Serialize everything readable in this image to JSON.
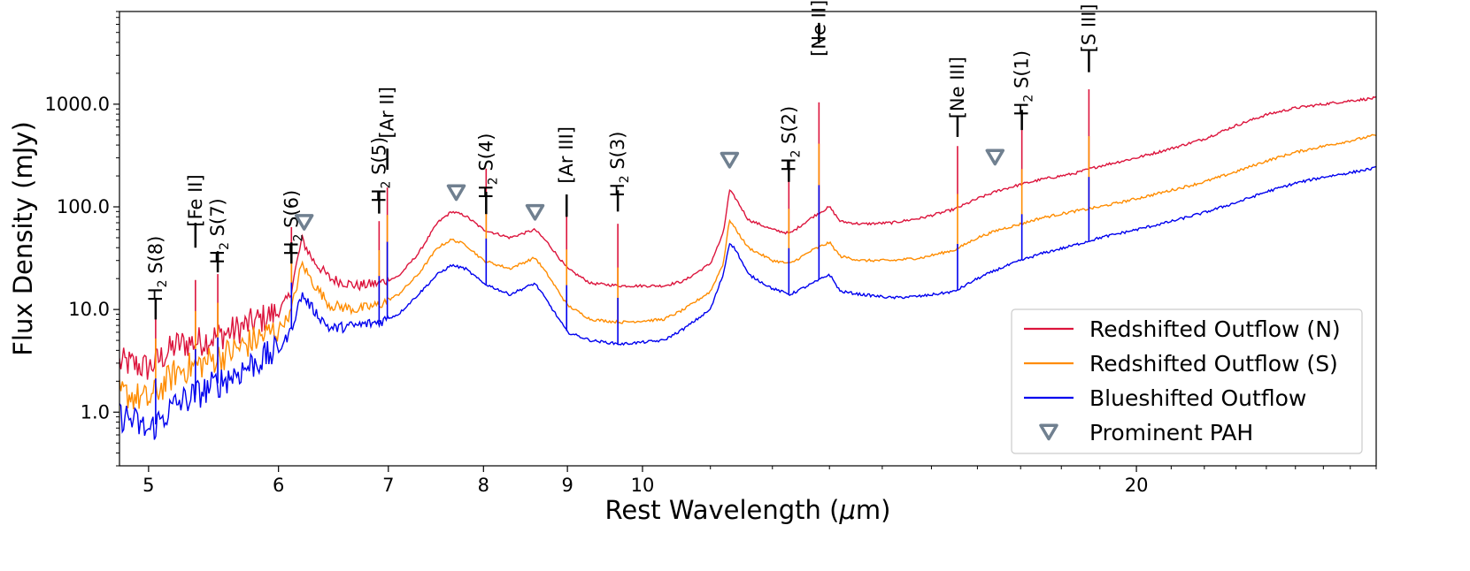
{
  "chart_data": {
    "type": "line",
    "title": "",
    "xlabel": "Rest Wavelength (μm)",
    "xlabel_parts": {
      "text": "Rest Wavelength (",
      "unit": "μ",
      "unit_rest": "m)"
    },
    "ylabel": "Flux Density (mJy)",
    "xscale": "log",
    "yscale": "log",
    "xlim": [
      4.8,
      28.0
    ],
    "ylim": [
      0.3,
      8000
    ],
    "xticks": [
      {
        "value": 5,
        "label": "5"
      },
      {
        "value": 6,
        "label": "6"
      },
      {
        "value": 7,
        "label": "7"
      },
      {
        "value": 8,
        "label": "8"
      },
      {
        "value": 9,
        "label": "9"
      },
      {
        "value": 10,
        "label": "10"
      },
      {
        "value": 20,
        "label": "20"
      }
    ],
    "yticks": [
      {
        "value": 1,
        "label": "1.0"
      },
      {
        "value": 10,
        "label": "10.0"
      },
      {
        "value": 100,
        "label": "100.0"
      },
      {
        "value": 1000,
        "label": "1000.0"
      }
    ],
    "series": [
      {
        "name": "Redshifted Outflow (N)",
        "color": "#dc143c",
        "points": [
          [
            4.85,
            3.0
          ],
          [
            5.0,
            2.7
          ],
          [
            5.2,
            4.5
          ],
          [
            5.4,
            5.0
          ],
          [
            5.6,
            6.0
          ],
          [
            5.8,
            7.5
          ],
          [
            6.0,
            9.5
          ],
          [
            6.1,
            14
          ],
          [
            6.2,
            48
          ],
          [
            6.3,
            30
          ],
          [
            6.45,
            20
          ],
          [
            6.7,
            17
          ],
          [
            6.9,
            18
          ],
          [
            7.1,
            21
          ],
          [
            7.3,
            35
          ],
          [
            7.5,
            70
          ],
          [
            7.65,
            90
          ],
          [
            7.8,
            82
          ],
          [
            8.0,
            60
          ],
          [
            8.3,
            50
          ],
          [
            8.6,
            60
          ],
          [
            8.75,
            45
          ],
          [
            9.0,
            25
          ],
          [
            9.3,
            18
          ],
          [
            9.7,
            17
          ],
          [
            10.3,
            17
          ],
          [
            10.6,
            19
          ],
          [
            11.0,
            28
          ],
          [
            11.2,
            55
          ],
          [
            11.3,
            145
          ],
          [
            11.4,
            120
          ],
          [
            11.6,
            75
          ],
          [
            12.0,
            60
          ],
          [
            12.3,
            55
          ],
          [
            12.7,
            80
          ],
          [
            13.0,
            100
          ],
          [
            13.2,
            72
          ],
          [
            13.6,
            68
          ],
          [
            14.2,
            70
          ],
          [
            14.8,
            78
          ],
          [
            15.5,
            95
          ],
          [
            16.0,
            120
          ],
          [
            16.5,
            145
          ],
          [
            17.0,
            165
          ],
          [
            17.5,
            185
          ],
          [
            18.3,
            210
          ],
          [
            19.0,
            250
          ],
          [
            20.0,
            300
          ],
          [
            21.0,
            370
          ],
          [
            22.0,
            460
          ],
          [
            23.0,
            620
          ],
          [
            24.0,
            790
          ],
          [
            25.0,
            920
          ],
          [
            26.0,
            1000
          ],
          [
            27.0,
            1080
          ],
          [
            28.0,
            1150
          ]
        ]
      },
      {
        "name": "Redshifted Outflow (S)",
        "color": "#ff8c00",
        "points": [
          [
            4.85,
            1.5
          ],
          [
            5.0,
            1.3
          ],
          [
            5.2,
            2.5
          ],
          [
            5.4,
            3.0
          ],
          [
            5.6,
            3.8
          ],
          [
            5.8,
            5.0
          ],
          [
            6.0,
            6.5
          ],
          [
            6.1,
            9
          ],
          [
            6.2,
            28
          ],
          [
            6.3,
            18
          ],
          [
            6.45,
            11
          ],
          [
            6.7,
            10
          ],
          [
            6.9,
            11
          ],
          [
            7.1,
            14
          ],
          [
            7.3,
            22
          ],
          [
            7.5,
            40
          ],
          [
            7.65,
            48
          ],
          [
            7.8,
            43
          ],
          [
            8.0,
            30
          ],
          [
            8.3,
            25
          ],
          [
            8.6,
            32
          ],
          [
            8.75,
            22
          ],
          [
            9.0,
            11
          ],
          [
            9.3,
            8
          ],
          [
            9.7,
            7.5
          ],
          [
            10.3,
            8
          ],
          [
            10.6,
            10
          ],
          [
            11.0,
            15
          ],
          [
            11.2,
            28
          ],
          [
            11.3,
            75
          ],
          [
            11.4,
            60
          ],
          [
            11.6,
            40
          ],
          [
            12.0,
            30
          ],
          [
            12.3,
            28
          ],
          [
            12.7,
            38
          ],
          [
            13.0,
            45
          ],
          [
            13.2,
            33
          ],
          [
            13.6,
            30
          ],
          [
            14.2,
            30
          ],
          [
            14.8,
            32
          ],
          [
            15.5,
            38
          ],
          [
            16.0,
            50
          ],
          [
            16.5,
            60
          ],
          [
            17.0,
            68
          ],
          [
            17.5,
            78
          ],
          [
            18.3,
            90
          ],
          [
            19.0,
            100
          ],
          [
            20.0,
            120
          ],
          [
            21.0,
            145
          ],
          [
            22.0,
            175
          ],
          [
            23.0,
            220
          ],
          [
            24.0,
            280
          ],
          [
            25.0,
            340
          ],
          [
            26.0,
            390
          ],
          [
            27.0,
            440
          ],
          [
            28.0,
            500
          ]
        ]
      },
      {
        "name": "Blueshifted Outflow",
        "color": "#0000ee",
        "points": [
          [
            4.85,
            0.9
          ],
          [
            5.0,
            0.65
          ],
          [
            5.2,
            1.2
          ],
          [
            5.4,
            1.6
          ],
          [
            5.6,
            2.2
          ],
          [
            5.8,
            3.0
          ],
          [
            6.0,
            4.0
          ],
          [
            6.1,
            6
          ],
          [
            6.2,
            14
          ],
          [
            6.3,
            10
          ],
          [
            6.45,
            6.5
          ],
          [
            6.7,
            7
          ],
          [
            6.9,
            7.5
          ],
          [
            7.1,
            9
          ],
          [
            7.3,
            14
          ],
          [
            7.5,
            22
          ],
          [
            7.65,
            27
          ],
          [
            7.8,
            25
          ],
          [
            8.0,
            18
          ],
          [
            8.3,
            14
          ],
          [
            8.6,
            18
          ],
          [
            8.75,
            12
          ],
          [
            9.0,
            6
          ],
          [
            9.3,
            5
          ],
          [
            9.7,
            4.6
          ],
          [
            10.3,
            5
          ],
          [
            10.6,
            6.5
          ],
          [
            11.0,
            10
          ],
          [
            11.2,
            22
          ],
          [
            11.3,
            45
          ],
          [
            11.4,
            38
          ],
          [
            11.6,
            22
          ],
          [
            12.0,
            16
          ],
          [
            12.3,
            14
          ],
          [
            12.7,
            18
          ],
          [
            13.0,
            22
          ],
          [
            13.2,
            15
          ],
          [
            13.6,
            14
          ],
          [
            14.2,
            13
          ],
          [
            14.8,
            13.5
          ],
          [
            15.5,
            15
          ],
          [
            16.0,
            20
          ],
          [
            16.5,
            25
          ],
          [
            17.0,
            30
          ],
          [
            17.5,
            35
          ],
          [
            18.3,
            42
          ],
          [
            19.0,
            50
          ],
          [
            20.0,
            60
          ],
          [
            21.0,
            72
          ],
          [
            22.0,
            88
          ],
          [
            23.0,
            110
          ],
          [
            24.0,
            140
          ],
          [
            25.0,
            170
          ],
          [
            26.0,
            195
          ],
          [
            27.0,
            215
          ],
          [
            28.0,
            240
          ]
        ]
      }
    ],
    "emission_lines": [
      {
        "x": 5.05,
        "name": "H",
        "sub": "2",
        "rest": " S(8)",
        "bar_y": [
          8,
          13
        ],
        "label_y": 25
      },
      {
        "x": 5.34,
        "name": "[Fe II]",
        "sub": "",
        "rest": "",
        "bar_y": [
          40,
          70
        ],
        "label_y": 115
      },
      {
        "x": 5.51,
        "name": "H",
        "sub": "2",
        "rest": " S(7)",
        "bar_y": [
          23,
          37
        ],
        "label_y": 58
      },
      {
        "x": 6.11,
        "name": "H",
        "sub": "2",
        "rest": " S(6)",
        "bar_y": [
          28,
          45
        ],
        "label_y": 70
      },
      {
        "x": 6.91,
        "name": "H",
        "sub": "2",
        "rest": " S(5)",
        "bar_y": [
          86,
          140
        ],
        "label_y": 230
      },
      {
        "x": 6.99,
        "name": "[Ar II]",
        "sub": "",
        "rest": "",
        "bar_y": [
          230,
          370
        ],
        "label_y": 830
      },
      {
        "x": 8.03,
        "name": "H",
        "sub": "2",
        "rest": " S(4)",
        "bar_y": [
          85,
          140
        ],
        "label_y": 250
      },
      {
        "x": 8.99,
        "name": "[Ar III]",
        "sub": "",
        "rest": "",
        "bar_y": [
          80,
          132
        ],
        "label_y": 320
      },
      {
        "x": 9.66,
        "name": "H",
        "sub": "2",
        "rest": " S(3)",
        "bar_y": [
          90,
          145
        ],
        "label_y": 260
      },
      {
        "x": 12.28,
        "name": "H",
        "sub": "2",
        "rest": " S(2)",
        "bar_y": [
          175,
          280
        ],
        "label_y": 460
      },
      {
        "x": 12.81,
        "name": "[Ne II]",
        "sub": "",
        "rest": "",
        "bar_y": [
          3900,
          6200
        ],
        "label_y": 5500
      },
      {
        "x": 15.56,
        "name": "[Ne III]",
        "sub": "",
        "rest": "",
        "bar_y": [
          480,
          750
        ],
        "label_y": 1450
      },
      {
        "x": 17.03,
        "name": "H",
        "sub": "2",
        "rest": " S(1)",
        "bar_y": [
          560,
          880
        ],
        "label_y": 1600
      },
      {
        "x": 18.71,
        "name": "[S III]",
        "sub": "",
        "rest": "",
        "bar_y": [
          2050,
          3300
        ],
        "label_y": 5500
      }
    ],
    "pah_markers": [
      {
        "x": 6.22,
        "y": 72
      },
      {
        "x": 7.7,
        "y": 140
      },
      {
        "x": 8.6,
        "y": 90
      },
      {
        "x": 11.3,
        "y": 290
      },
      {
        "x": 16.4,
        "y": 310
      }
    ],
    "pah_color": "#708090",
    "legend": {
      "placement": "lower-right",
      "entries": [
        {
          "label": "Redshifted Outflow (N)",
          "kind": "line",
          "color": "#dc143c"
        },
        {
          "label": "Redshifted Outflow (S)",
          "kind": "line",
          "color": "#ff8c00"
        },
        {
          "label": "Blueshifted Outflow",
          "kind": "line",
          "color": "#0000ee"
        },
        {
          "label": "Prominent PAH",
          "kind": "triangle",
          "color": "#708090"
        }
      ]
    }
  }
}
